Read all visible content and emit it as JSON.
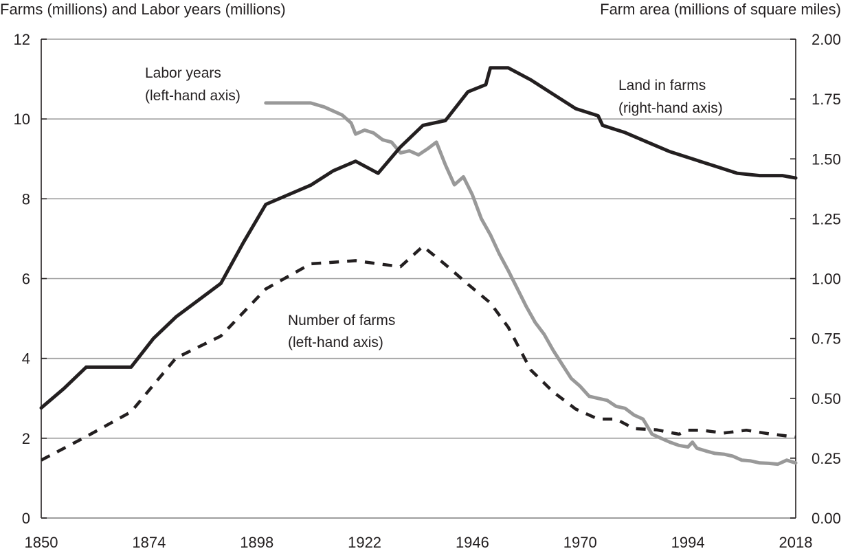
{
  "chart_data": {
    "type": "line",
    "title": "",
    "left_axis_title": "Farms (millions) and Labor years (millions)",
    "right_axis_title": "Farm area (millions of square miles)",
    "xlabel": "",
    "x_ticks": [
      "1850",
      "1874",
      "1898",
      "1922",
      "1946",
      "1970",
      "1994",
      "2018"
    ],
    "left_ticks": [
      "0",
      "2",
      "4",
      "6",
      "8",
      "10",
      "12"
    ],
    "right_ticks": [
      "0.00",
      "0.25",
      "0.50",
      "0.75",
      "1.00",
      "1.25",
      "1.50",
      "1.75",
      "2.00"
    ],
    "xlim": [
      1850,
      2018
    ],
    "ylim_left": [
      0,
      12
    ],
    "ylim_right": [
      0,
      2.0
    ],
    "grid": "horizontal",
    "legend": "inline annotations",
    "annotations": [
      {
        "line1": "Labor years",
        "line2": "(left-hand axis)"
      },
      {
        "line1": "Land in farms",
        "line2": "(right-hand axis)"
      },
      {
        "line1": "Number of farms",
        "line2": "(left-hand axis)"
      }
    ],
    "series": [
      {
        "name": "Land in farms",
        "axis": "right",
        "style": "solid",
        "color": "#231f20",
        "x": [
          1850,
          1855,
          1860,
          1865,
          1870,
          1875,
          1880,
          1885,
          1890,
          1895,
          1900,
          1905,
          1910,
          1915,
          1920,
          1925,
          1930,
          1935,
          1940,
          1945,
          1949,
          1950,
          1954,
          1959,
          1964,
          1969,
          1974,
          1975,
          1980,
          1985,
          1990,
          1995,
          2000,
          2005,
          2010,
          2015,
          2018
        ],
        "y": [
          0.46,
          0.54,
          0.63,
          0.63,
          0.63,
          0.75,
          0.84,
          0.91,
          0.98,
          1.15,
          1.31,
          1.35,
          1.39,
          1.45,
          1.49,
          1.44,
          1.55,
          1.64,
          1.66,
          1.78,
          1.81,
          1.88,
          1.88,
          1.83,
          1.77,
          1.71,
          1.68,
          1.64,
          1.61,
          1.57,
          1.53,
          1.5,
          1.47,
          1.44,
          1.43,
          1.43,
          1.42
        ]
      },
      {
        "name": "Labor years",
        "axis": "left",
        "style": "solid",
        "color": "#999999",
        "x": [
          1900,
          1905,
          1910,
          1913,
          1917,
          1919,
          1920,
          1922,
          1924,
          1926,
          1928,
          1930,
          1932,
          1934,
          1936,
          1938,
          1940,
          1942,
          1944,
          1946,
          1948,
          1950,
          1952,
          1954,
          1956,
          1958,
          1960,
          1962,
          1964,
          1966,
          1968,
          1970,
          1972,
          1974,
          1976,
          1978,
          1980,
          1982,
          1984,
          1986,
          1988,
          1990,
          1992,
          1994,
          1995,
          1996,
          1998,
          2000,
          2002,
          2004,
          2006,
          2008,
          2010,
          2012,
          2014,
          2016,
          2018
        ],
        "y": [
          10.4,
          10.4,
          10.4,
          10.3,
          10.1,
          9.9,
          9.62,
          9.72,
          9.65,
          9.48,
          9.42,
          9.15,
          9.2,
          9.1,
          9.25,
          9.42,
          8.85,
          8.35,
          8.55,
          8.1,
          7.5,
          7.1,
          6.62,
          6.2,
          5.75,
          5.3,
          4.9,
          4.6,
          4.2,
          3.85,
          3.5,
          3.3,
          3.05,
          3.0,
          2.95,
          2.8,
          2.75,
          2.58,
          2.48,
          2.1,
          2.0,
          1.9,
          1.82,
          1.78,
          1.9,
          1.75,
          1.68,
          1.62,
          1.6,
          1.55,
          1.45,
          1.43,
          1.38,
          1.37,
          1.35,
          1.45,
          1.38
        ]
      },
      {
        "name": "Number of farms",
        "axis": "left",
        "style": "dashed",
        "color": "#231f20",
        "x": [
          1850,
          1860,
          1870,
          1880,
          1890,
          1900,
          1910,
          1920,
          1925,
          1930,
          1935,
          1940,
          1945,
          1950,
          1954,
          1959,
          1964,
          1969,
          1974,
          1978,
          1982,
          1987,
          1992,
          1994,
          1997,
          2002,
          2007,
          2012,
          2018
        ],
        "y": [
          1.45,
          2.04,
          2.66,
          4.01,
          4.56,
          5.74,
          6.37,
          6.45,
          6.37,
          6.3,
          6.81,
          6.35,
          5.86,
          5.39,
          4.78,
          3.71,
          3.16,
          2.73,
          2.48,
          2.48,
          2.24,
          2.21,
          2.1,
          2.2,
          2.2,
          2.13,
          2.2,
          2.11,
          2.03
        ]
      }
    ]
  }
}
